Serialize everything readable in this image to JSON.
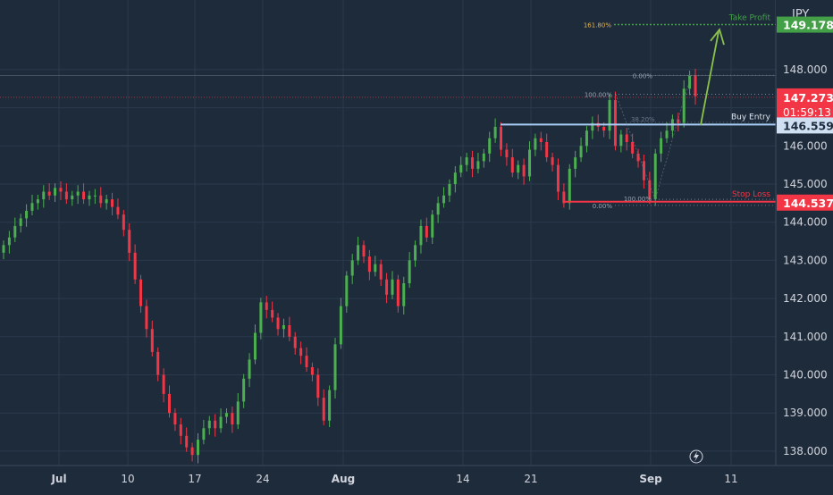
{
  "colors": {
    "background": "#1e2b3b",
    "up": "#4caf50",
    "down": "#f23645",
    "take_profit": "#43a047",
    "stop_loss": "#f23645",
    "buy_entry": "#a9cdf4",
    "arrow": "#8bc34a",
    "axis_text": "#d1d4dc",
    "grid": "#2a3a4c"
  },
  "header": {
    "currency": "JPY"
  },
  "chart_data": {
    "type": "candlestick",
    "x_tick_labels": [
      "Jul",
      "10",
      "17",
      "24",
      "Aug",
      "14",
      "21",
      "Sep",
      "11"
    ],
    "y_ticks": [
      "148.000",
      "147.000",
      "146.000",
      "145.000",
      "144.000",
      "143.000",
      "142.000",
      "141.000",
      "140.000",
      "139.000",
      "138.000"
    ],
    "ylim": [
      137.6,
      149.8
    ],
    "price_labels": {
      "take_profit": "149.178",
      "current": "147.273",
      "countdown": "01:59:13",
      "buy_entry": "146.559",
      "stop_loss": "144.537"
    },
    "levels": {
      "take_profit": 149.178,
      "buy_entry": 146.559,
      "stop_loss": 144.537,
      "recent_high": 147.85,
      "current": 147.273
    },
    "annotations": {
      "take_profit_label": "Take Profit",
      "buy_entry_label": "Buy Entry",
      "stop_loss_label": "Stop Loss"
    },
    "fib_labels": {
      "f161": "161.80%",
      "f0_top": "0.00%",
      "f100_left": "100.00%",
      "f38": "38.20%",
      "f100_bottom": "100.00%",
      "f0_bottom": "0.00%"
    },
    "fib_levels": {
      "f161": 149.178,
      "f0_top": 147.85,
      "f100_left": 147.35,
      "f38": 146.62,
      "f100_bottom": 144.6,
      "f0_bottom": 144.44
    },
    "series_close": [
      143.4,
      143.6,
      143.9,
      144.1,
      144.3,
      144.5,
      144.6,
      144.8,
      144.7,
      144.9,
      144.8,
      144.6,
      144.7,
      144.8,
      144.6,
      144.7,
      144.7,
      144.5,
      144.6,
      144.4,
      144.2,
      143.8,
      143.2,
      142.5,
      141.8,
      141.2,
      140.6,
      140.0,
      139.5,
      139.0,
      138.7,
      138.4,
      138.1,
      137.9,
      138.3,
      138.6,
      138.8,
      138.6,
      138.9,
      139.0,
      138.7,
      139.3,
      139.9,
      140.4,
      141.1,
      141.9,
      141.7,
      141.5,
      141.2,
      141.3,
      141.0,
      140.7,
      140.5,
      140.2,
      140.0,
      139.4,
      138.8,
      139.6,
      140.8,
      141.8,
      142.6,
      143.0,
      143.4,
      143.1,
      142.7,
      142.9,
      142.5,
      142.1,
      142.5,
      141.8,
      142.4,
      143.0,
      143.4,
      143.9,
      143.6,
      144.2,
      144.5,
      144.7,
      145.0,
      145.3,
      145.5,
      145.7,
      145.4,
      145.6,
      145.8,
      146.2,
      146.5,
      145.9,
      145.7,
      145.3,
      145.5,
      145.2,
      145.9,
      146.2,
      146.1,
      145.7,
      145.5,
      144.8,
      144.5,
      145.4,
      145.7,
      146.0,
      146.4,
      146.6,
      146.5,
      146.4,
      147.2,
      146.0,
      146.3,
      146.1,
      145.8,
      145.6,
      145.1,
      144.6,
      145.8,
      146.2,
      146.4,
      146.7,
      146.6,
      147.5,
      147.85,
      147.3
    ]
  }
}
